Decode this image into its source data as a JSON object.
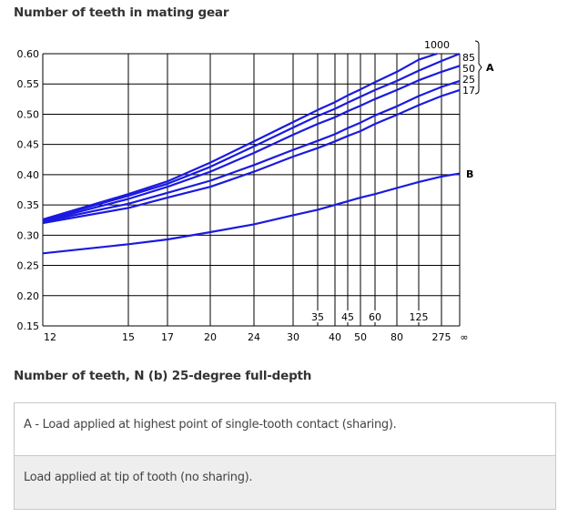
{
  "header": {
    "title": "Number of teeth in mating gear"
  },
  "footer": {
    "xtitle": "Number of teeth, N (b) 25-degree full-depth"
  },
  "legend_table": {
    "rows": [
      {
        "label": "A - Load applied at highest point of single-tooth contact (sharing)."
      },
      {
        "label": "Load applied at tip of tooth (no sharing)."
      }
    ]
  },
  "chart_data": {
    "type": "line",
    "title": "Number of teeth in mating gear",
    "xlabel": "Number of teeth, N (b) 25-degree full-depth",
    "ylabel": "",
    "ylim": [
      0.15,
      0.6
    ],
    "yticks": [
      "0.60",
      "0.55",
      "0.50",
      "0.45",
      "0.40",
      "0.35",
      "0.30",
      "0.25",
      "0.20",
      "0.15"
    ],
    "x_bottom_ticks": [
      "12",
      "15",
      "17",
      "20",
      "24",
      "30",
      "40",
      "50",
      "80",
      "275",
      "∞"
    ],
    "x_inner_ticks": [
      "35",
      "45",
      "60",
      "125"
    ],
    "x": [
      "12",
      "15",
      "17",
      "20",
      "24",
      "30",
      "35",
      "40",
      "45",
      "50",
      "60",
      "80",
      "125",
      "275",
      "∞"
    ],
    "grid": true,
    "curve_labels": {
      "top": "1000",
      "right": [
        "85",
        "50",
        "25",
        "17"
      ],
      "group_A": "A",
      "group_B": "B"
    },
    "series": [
      {
        "name": "A-1000",
        "values": [
          0.326,
          0.368,
          0.389,
          0.42,
          0.455,
          0.487,
          0.507,
          0.52,
          0.531,
          0.541,
          0.553,
          0.57,
          0.59,
          0.6,
          null
        ]
      },
      {
        "name": "A-85",
        "values": [
          0.325,
          0.365,
          0.385,
          0.413,
          0.447,
          0.478,
          0.497,
          0.509,
          0.519,
          0.529,
          0.54,
          0.555,
          0.572,
          0.588,
          0.6
        ]
      },
      {
        "name": "A-50",
        "values": [
          0.323,
          0.36,
          0.38,
          0.405,
          0.436,
          0.466,
          0.484,
          0.495,
          0.505,
          0.514,
          0.525,
          0.54,
          0.556,
          0.57,
          0.58
        ]
      },
      {
        "name": "A-25",
        "values": [
          0.322,
          0.352,
          0.37,
          0.39,
          0.416,
          0.441,
          0.456,
          0.467,
          0.477,
          0.486,
          0.498,
          0.513,
          0.53,
          0.545,
          0.555
        ]
      },
      {
        "name": "A-17",
        "values": [
          0.32,
          0.345,
          0.362,
          0.38,
          0.405,
          0.43,
          0.444,
          0.455,
          0.464,
          0.472,
          0.484,
          0.499,
          0.515,
          0.53,
          0.54
        ]
      },
      {
        "name": "B",
        "values": [
          0.27,
          0.285,
          0.293,
          0.305,
          0.318,
          0.333,
          0.342,
          0.35,
          0.356,
          0.362,
          0.368,
          0.378,
          0.388,
          0.397,
          0.402
        ]
      }
    ],
    "colors": {
      "curve": "#1a1adf",
      "grid": "#000000"
    }
  }
}
